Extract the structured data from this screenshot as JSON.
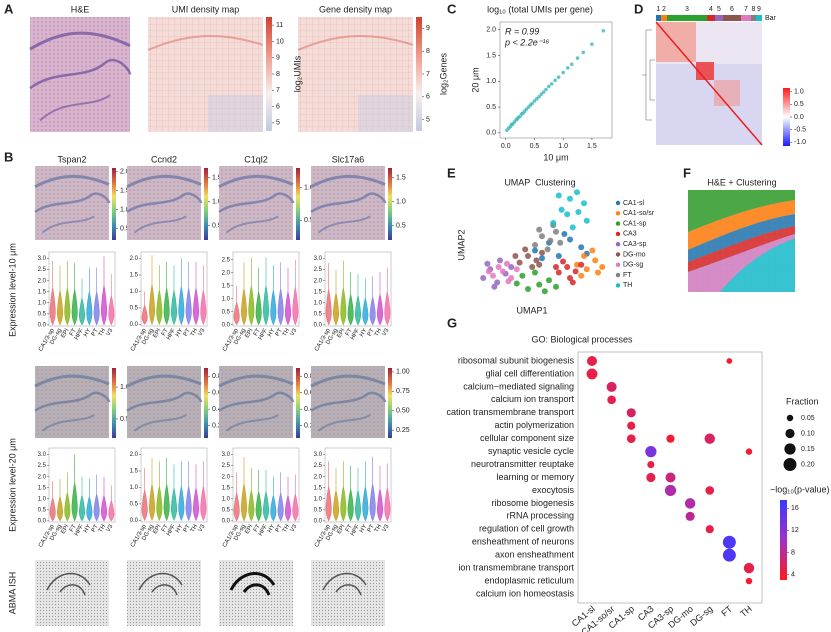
{
  "panel_labels": [
    "A",
    "B",
    "C",
    "D",
    "E",
    "F",
    "G"
  ],
  "colormaps": {
    "density": [
      "#c3cbe0",
      "#f6eeee",
      "#f09a8a",
      "#d2402e"
    ],
    "expression": [
      "#3b3b9a",
      "#3d8fb0",
      "#7ecf7e",
      "#f0e060",
      "#e07040",
      "#a02040"
    ],
    "correlation": [
      "#1a1aff",
      "#ffffff",
      "#ff1a1a"
    ],
    "pvalue": [
      "#ff1a1a",
      "#a030c8",
      "#3a3aff"
    ]
  },
  "A": {
    "titles": [
      "H&E",
      "UMI density map",
      "Gene density map"
    ],
    "umi_colorbar": {
      "label": "log₂UMIs",
      "lim": [
        4.5,
        11.5
      ],
      "ticks": [
        5,
        6,
        7,
        8,
        9,
        10,
        11
      ]
    },
    "gene_colorbar": {
      "label": "log₂Genes",
      "lim": [
        4.5,
        9.5
      ],
      "ticks": [
        5,
        6,
        7,
        8,
        9
      ]
    }
  },
  "B": {
    "genes": [
      "Tspan2",
      "Ccnd2",
      "C1ql2",
      "Slc17a6"
    ],
    "row_labels": [
      "Expression level-10 μm",
      "Expression level-20 μm",
      "ABMA ISH"
    ],
    "categories": [
      "CA1/3-sp",
      "DG-sg",
      "EPI",
      "FT",
      "HPF",
      "HY",
      "PT",
      "TH",
      "V3"
    ],
    "violin_colors": [
      "#e8707a",
      "#c8a020",
      "#8ab820",
      "#38b048",
      "#30b8a0",
      "#30a8d8",
      "#8080e8",
      "#d050d0",
      "#f070a8"
    ],
    "colorbars_10": [
      {
        "lim": [
          0.2,
          2.1
        ],
        "ticks": [
          0.5,
          {
            "value": 1,
            "label": "1.0"
          },
          1.5,
          {
            "value": 2,
            "label": "2.0"
          }
        ]
      },
      {
        "lim": [
          0.2,
          1.7
        ],
        "ticks": [
          0.5,
          {
            "value": 1,
            "label": "1.0"
          },
          1.5
        ]
      },
      {
        "lim": [
          0.2,
          1.3
        ],
        "ticks": [
          0.5,
          {
            "value": 1,
            "label": "1.0"
          }
        ]
      },
      {
        "lim": [
          0.2,
          1.7
        ],
        "ticks": [
          0.5,
          {
            "value": 1,
            "label": "1.0"
          },
          1.5
        ]
      }
    ],
    "colorbars_20": [
      {
        "lim": [
          0.2,
          1.3
        ],
        "ticks": [
          0.5,
          {
            "value": 1,
            "label": "1.0"
          }
        ]
      },
      {
        "lim": [
          0.05,
          0.9
        ],
        "ticks": [
          0.2,
          0.4,
          0.6,
          0.8
        ]
      },
      {
        "lim": [
          0.05,
          0.9
        ],
        "ticks": [
          0.2,
          0.4,
          0.6,
          0.8
        ]
      },
      {
        "lim": [
          0.15,
          1.05
        ],
        "ticks": [
          0.25,
          {
            "value": 0.5,
            "label": "0.50"
          },
          0.75,
          {
            "value": 1,
            "label": "1.00"
          }
        ]
      }
    ],
    "violins_10": [
      {
        "ylim": [
          -0.05,
          3.3
        ],
        "yticks": [
          {
            "value": 0,
            "label": "0.0"
          },
          0.5,
          {
            "value": 1,
            "label": "1.0"
          },
          1.5,
          {
            "value": 2,
            "label": "2.0"
          },
          2.5,
          {
            "value": 3,
            "label": "3.0"
          }
        ],
        "values": [
          2.9,
          2.7,
          2.9,
          2.8,
          2.1,
          2.6,
          2.6,
          3.1,
          2.3
        ]
      },
      {
        "ylim": [
          -0.05,
          2.2
        ],
        "yticks": [
          {
            "value": 0,
            "label": "0.0"
          },
          0.5,
          {
            "value": 1,
            "label": "1.0"
          },
          1.5,
          {
            "value": 2,
            "label": "2.0"
          }
        ],
        "values": [
          1.0,
          2.1,
          1.8,
          1.9,
          1.8,
          2.0,
          1.9,
          1.9,
          1.8
        ]
      },
      {
        "ylim": [
          -0.05,
          2.8
        ],
        "yticks": [
          {
            "value": 0,
            "label": "0.0"
          },
          0.5,
          {
            "value": 1,
            "label": "1.0"
          },
          1.5,
          {
            "value": 2,
            "label": "2.0"
          },
          2.5
        ],
        "values": [
          1.5,
          2.4,
          2.6,
          2.2,
          2.6,
          2.3,
          2.4,
          2.2,
          2.5
        ]
      },
      {
        "ylim": [
          -0.05,
          3.3
        ],
        "yticks": [
          {
            "value": 0,
            "label": "0.0"
          },
          0.5,
          {
            "value": 1,
            "label": "1.0"
          },
          1.5,
          {
            "value": 2,
            "label": "2.0"
          },
          2.5,
          {
            "value": 3,
            "label": "3.0"
          }
        ],
        "values": [
          2.8,
          2.5,
          2.9,
          2.4,
          2.3,
          2.1,
          2.2,
          2.4,
          2.6
        ]
      }
    ],
    "violins_20": [
      {
        "ylim": [
          -0.05,
          3.3
        ],
        "yticks": [
          {
            "value": 0,
            "label": "0.0"
          },
          0.5,
          {
            "value": 1,
            "label": "1.0"
          },
          1.5,
          {
            "value": 2,
            "label": "2.0"
          },
          2.5,
          {
            "value": 3,
            "label": "3.0"
          }
        ],
        "values": [
          1.8,
          1.9,
          2.2,
          3.0,
          2.0,
          1.9,
          2.1,
          2.0,
          1.6
        ]
      },
      {
        "ylim": [
          -0.05,
          2.2
        ],
        "yticks": [
          {
            "value": 0,
            "label": "0.0"
          },
          0.5,
          {
            "value": 1,
            "label": "1.0"
          },
          1.5,
          {
            "value": 2,
            "label": "2.0"
          }
        ],
        "values": [
          1.6,
          1.9,
          1.8,
          1.9,
          1.7,
          1.8,
          1.8,
          1.7,
          1.8
        ]
      },
      {
        "ylim": [
          -0.05,
          3.3
        ],
        "yticks": [
          {
            "value": 0,
            "label": "0.0"
          },
          0.5,
          {
            "value": 1,
            "label": "1.0"
          },
          1.5,
          {
            "value": 2,
            "label": "2.0"
          },
          2.5,
          {
            "value": 3,
            "label": "3.0"
          }
        ],
        "values": [
          2.2,
          2.9,
          2.4,
          2.3,
          2.3,
          2.0,
          2.2,
          2.0,
          2.1
        ]
      },
      {
        "ylim": [
          -0.05,
          3.3
        ],
        "yticks": [
          {
            "value": 0,
            "label": "0.0"
          },
          0.5,
          {
            "value": 1,
            "label": "1.0"
          },
          1.5,
          {
            "value": 2,
            "label": "2.0"
          },
          2.5,
          {
            "value": 3,
            "label": "3.0"
          }
        ],
        "values": [
          2.7,
          2.4,
          2.7,
          2.5,
          2.4,
          2.7,
          2.9,
          2.5,
          2.6
        ]
      }
    ]
  },
  "C": {
    "type": "scatter",
    "title": "log₁₀ (total UMIs per gene)",
    "xlabel": "10 μm",
    "ylabel": "20 μm",
    "annotations": [
      "R = 0.99",
      "p < 2.2e⁻¹⁶"
    ],
    "color": "#3cb8b8",
    "xlim": [
      -0.1,
      1.85
    ],
    "ylim": [
      -0.1,
      2.15
    ],
    "xticks": [
      {
        "value": 0,
        "label": "0.0"
      },
      0.5,
      {
        "value": 1,
        "label": "1.0"
      },
      1.5
    ],
    "yticks": [
      {
        "value": 0,
        "label": "0.0"
      },
      0.5,
      {
        "value": 1,
        "label": "1.0"
      },
      1.5,
      {
        "value": 2,
        "label": "2.0"
      }
    ],
    "x": [
      0.02,
      0.05,
      0.08,
      0.1,
      0.12,
      0.15,
      0.18,
      0.2,
      0.22,
      0.25,
      0.28,
      0.3,
      0.33,
      0.36,
      0.4,
      0.43,
      0.46,
      0.5,
      0.54,
      0.58,
      0.62,
      0.66,
      0.7,
      0.75,
      0.8,
      0.86,
      0.92,
      1.0,
      1.08,
      1.15,
      1.25,
      1.35,
      1.5,
      1.7
    ],
    "y": [
      0.05,
      0.09,
      0.12,
      0.16,
      0.17,
      0.21,
      0.25,
      0.27,
      0.3,
      0.32,
      0.37,
      0.38,
      0.42,
      0.46,
      0.5,
      0.54,
      0.57,
      0.62,
      0.66,
      0.7,
      0.75,
      0.79,
      0.84,
      0.9,
      0.95,
      1.02,
      1.08,
      1.17,
      1.26,
      1.33,
      1.45,
      1.56,
      1.72,
      1.98
    ]
  },
  "D": {
    "cluster_labels": [
      "1",
      "2",
      "3",
      "4",
      "5",
      "6",
      "7",
      "8",
      "9"
    ],
    "bar_label": "Bar",
    "cluster_colors": [
      "#1f77b4",
      "#ff7f0e",
      "#2ca02c",
      "#d62728",
      "#9467bd",
      "#8c564b",
      "#e377c2",
      "#7f7f7f",
      "#17becf"
    ],
    "colorbar": {
      "lim": [
        -1.15,
        1.15
      ],
      "ticks": [
        {
          "value": 1,
          "label": "1.0"
        },
        0.5,
        {
          "value": 0,
          "label": "0.0"
        },
        -0.5,
        {
          "value": -1,
          "label": "-1.0"
        }
      ]
    }
  },
  "E": {
    "type": "scatter",
    "title": "UMAP  Clustering",
    "xlabel": "UMAP1",
    "ylabel": "UMAP2",
    "xlim": [
      0,
      10
    ],
    "ylim": [
      0,
      10
    ],
    "clusters": [
      {
        "name": "CA1-sl",
        "color": "#1f77b4",
        "x": [
          4.5,
          5.5,
          6.2,
          7.0,
          7.8,
          5.0,
          6.6,
          8.2
        ],
        "y": [
          4.5,
          5.2,
          4.0,
          5.5,
          4.8,
          3.8,
          6.0,
          4.2
        ]
      },
      {
        "name": "CA1-so/sr",
        "color": "#ff7f0e",
        "x": [
          7.5,
          8.2,
          8.8,
          8.0,
          9.0,
          7.8,
          8.6,
          9.3
        ],
        "y": [
          3.2,
          2.8,
          3.6,
          4.0,
          2.5,
          2.2,
          4.5,
          3.0
        ]
      },
      {
        "name": "CA1-sp",
        "color": "#2ca02c",
        "x": [
          3.2,
          4.0,
          4.8,
          5.5,
          3.6,
          4.5,
          5.2,
          6.0
        ],
        "y": [
          1.5,
          1.0,
          1.4,
          1.8,
          2.2,
          2.5,
          0.8,
          1.2
        ]
      },
      {
        "name": "CA3",
        "color": "#d62728",
        "x": [
          6.2,
          6.8,
          7.4,
          7.0,
          6.5,
          7.8,
          6.0,
          7.2
        ],
        "y": [
          2.5,
          3.0,
          2.6,
          2.0,
          3.5,
          3.2,
          3.0,
          1.6
        ]
      },
      {
        "name": "CA3-sp",
        "color": "#9467bd",
        "x": [
          0.8,
          1.3,
          1.8,
          2.4,
          1.1,
          2.0,
          2.8,
          1.6
        ],
        "y": [
          2.0,
          2.8,
          1.6,
          2.4,
          3.3,
          3.6,
          3.0,
          1.2
        ]
      },
      {
        "name": "DG-mo",
        "color": "#8c564b",
        "x": [
          3.4,
          4.0,
          4.6,
          3.8,
          4.3,
          5.0,
          3.1,
          4.8
        ],
        "y": [
          3.4,
          4.0,
          3.6,
          4.6,
          3.0,
          4.3,
          4.0,
          3.2
        ]
      },
      {
        "name": "DG-sg",
        "color": "#e377c2",
        "x": [
          1.5,
          2.2,
          2.8,
          1.9,
          2.5,
          3.2,
          1.2,
          2.6
        ],
        "y": [
          2.2,
          2.6,
          2.0,
          3.0,
          3.3,
          2.8,
          2.6,
          1.7
        ]
      },
      {
        "name": "FT",
        "color": "#7f7f7f",
        "x": [
          4.5,
          5.0,
          5.6,
          6.0,
          4.8,
          5.4,
          6.3,
          5.8
        ],
        "y": [
          5.0,
          5.8,
          5.4,
          6.2,
          6.4,
          4.6,
          5.2,
          6.8
        ]
      },
      {
        "name": "TH",
        "color": "#17becf",
        "x": [
          5.8,
          6.4,
          7.0,
          7.6,
          8.2,
          6.2,
          7.2,
          8.0,
          6.8,
          7.5
        ],
        "y": [
          7.0,
          8.2,
          9.2,
          8.0,
          7.2,
          9.5,
          6.6,
          8.8,
          7.8,
          9.8
        ]
      }
    ]
  },
  "F": {
    "title": "H&E + Clustering"
  },
  "G": {
    "type": "dot",
    "title": "GO: Biological processes",
    "terms": [
      "ribosomal subunit biogenesis",
      "glial cell differentiation",
      "calcium−mediated signaling",
      "calcium ion transport",
      "cation transmembrane transport",
      "actin polymerization",
      "cellular component size",
      "synaptic vesicle cycle",
      "neurotransmitter reuptake",
      "learning or memory",
      "exocytosis",
      "ribosome biogenesis",
      "rRNA processing",
      "regulation of cell growth",
      "ensheathment of neurons",
      "axon ensheathment",
      "ion transmembrane transport",
      "endoplasmic reticulum",
      "calcium ion homeostasis"
    ],
    "categories": [
      "CA1-sl",
      "CA1-so/sr",
      "CA1-sp",
      "CA3",
      "CA3-sp",
      "DG-mo",
      "DG-sg",
      "FT",
      "TH"
    ],
    "points": {
      "term": [
        0,
        0,
        1,
        2,
        3,
        4,
        5,
        6,
        6,
        6,
        7,
        7,
        8,
        9,
        9,
        10,
        10,
        11,
        12,
        13,
        14,
        15,
        16,
        17
      ],
      "category": [
        0,
        7,
        0,
        1,
        1,
        2,
        2,
        2,
        4,
        6,
        3,
        8,
        3,
        3,
        4,
        4,
        6,
        5,
        5,
        6,
        7,
        7,
        8,
        8
      ],
      "fraction": [
        0.12,
        0.04,
        0.14,
        0.12,
        0.09,
        0.1,
        0.08,
        0.09,
        0.08,
        0.13,
        0.15,
        0.05,
        0.06,
        0.1,
        0.12,
        0.15,
        0.09,
        0.13,
        0.1,
        0.08,
        0.2,
        0.2,
        0.13,
        0.05
      ],
      "neg_log10_p": [
        5,
        4,
        5,
        6,
        5,
        6,
        5,
        5,
        4,
        6,
        13,
        4,
        5,
        5,
        7,
        9,
        5,
        9,
        8,
        5,
        16,
        16,
        5,
        4
      ]
    },
    "size_legend": {
      "title": "Fraction",
      "values": [
        0.05,
        {
          "value": 0.1,
          "label": "0.10"
        },
        0.15,
        {
          "value": 0.2,
          "label": "0.20"
        }
      ]
    },
    "color_legend": {
      "title": "−log₁₀(p-value)",
      "lim": [
        3,
        17.5
      ],
      "ticks": [
        16,
        12,
        8,
        4
      ]
    }
  }
}
